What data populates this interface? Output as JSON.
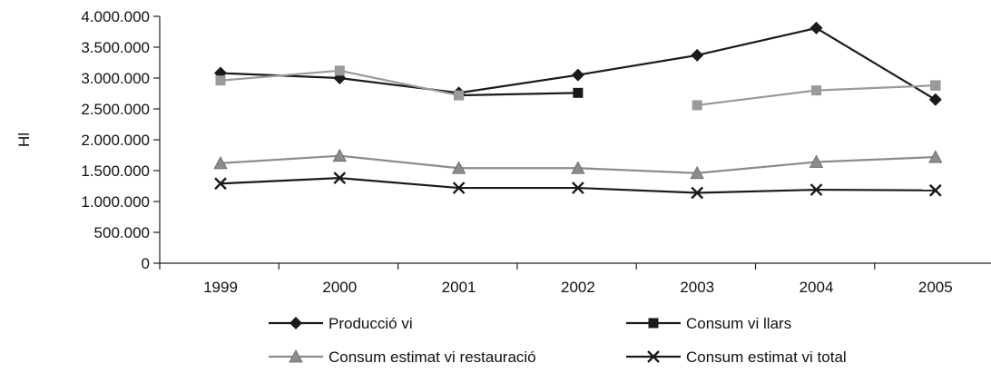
{
  "chart_data": {
    "type": "line",
    "title": "",
    "xlabel": "",
    "ylabel": "Hl",
    "categories": [
      "1999",
      "2000",
      "2001",
      "2002",
      "2003",
      "2004",
      "2005"
    ],
    "ylim": [
      0,
      4000000
    ],
    "yticks": [
      0,
      500000,
      1000000,
      1500000,
      2000000,
      2500000,
      3000000,
      3500000,
      4000000
    ],
    "ytick_labels": [
      "0",
      "500.000",
      "1.000.000",
      "1.500.000",
      "2.000.000",
      "2.500.000",
      "3.000.000",
      "3.500.000",
      "4.000.000"
    ],
    "grid": false,
    "legend_position": "bottom",
    "series": [
      {
        "name": "Producció vi",
        "marker": "diamond",
        "color": "#1a1a1a",
        "values": [
          3080000,
          3000000,
          2760000,
          3050000,
          3370000,
          3810000,
          2650000
        ]
      },
      {
        "name": "Consum vi llars",
        "marker": "square",
        "color": "#1a1a1a",
        "values": [
          null,
          null,
          2720000,
          2760000,
          null,
          null,
          2880000
        ]
      },
      {
        "name": "Consum estimat vi restauració",
        "marker": "triangle",
        "color": "#8c8c8c",
        "values": [
          1620000,
          1740000,
          1540000,
          1540000,
          1460000,
          1640000,
          1720000
        ]
      },
      {
        "name": "Consum estimat vi total",
        "marker": "x",
        "color": "#1a1a1a",
        "values": [
          1290000,
          1380000,
          1220000,
          1220000,
          1140000,
          1190000,
          1180000
        ]
      },
      {
        "name": "",
        "marker": "square",
        "color": "#9a9a9a",
        "values": [
          2960000,
          3120000,
          2720000,
          null,
          2560000,
          2800000,
          2880000
        ]
      }
    ]
  }
}
